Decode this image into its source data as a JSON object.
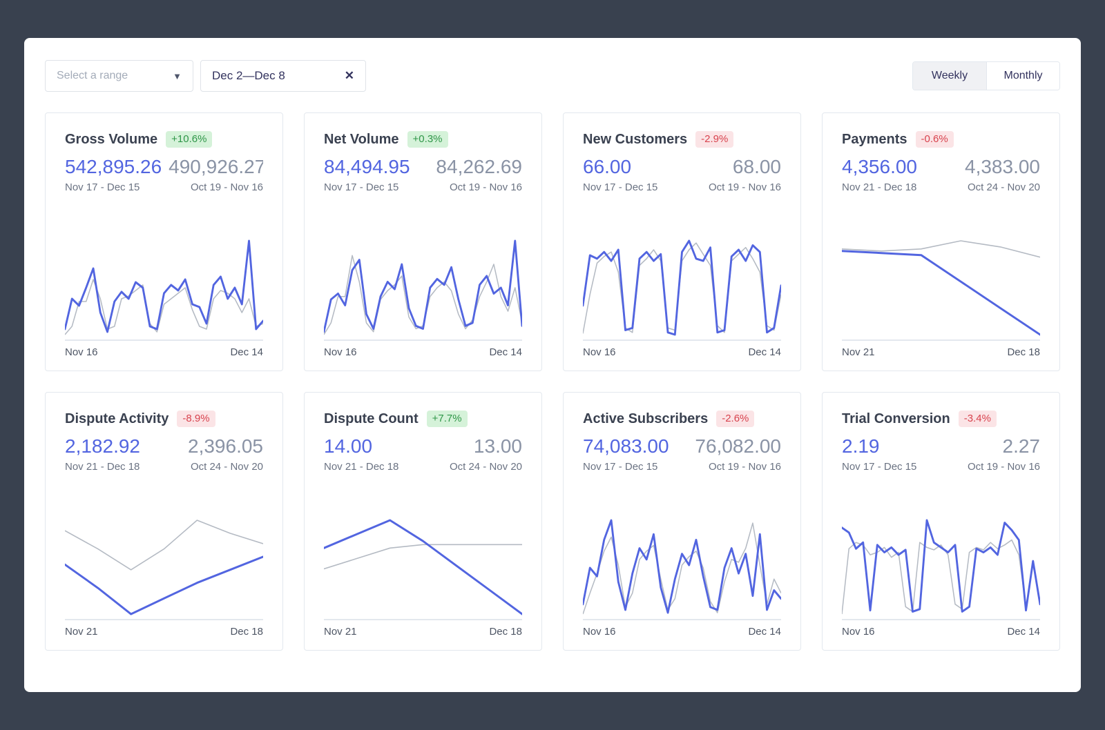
{
  "controls": {
    "range_select": {
      "label": "Select a range"
    },
    "range_input": {
      "value": "Dec 2—Dec 8"
    },
    "toggle": {
      "options": [
        "Weekly",
        "Monthly"
      ],
      "selected": "Weekly"
    }
  },
  "colors": {
    "accent": "#5265e0",
    "previous_line": "#b4bac3",
    "baseline": "#e3e8ee",
    "positive_text": "#2f9648",
    "negative_text": "#d8434e"
  },
  "cards": [
    {
      "title": "Gross Volume",
      "change": "+10.6%",
      "current_value": "542,895.26",
      "previous_value": "490,926.27",
      "current_period": "Nov 17 - Dec 15",
      "previous_period": "Oct 19 - Nov 16",
      "chart": {
        "type": "line",
        "x_start": "Nov 16",
        "x_end": "Dec 14",
        "current": [
          8,
          30,
          25,
          38,
          52,
          20,
          6,
          28,
          35,
          30,
          42,
          38,
          10,
          8,
          34,
          40,
          36,
          44,
          26,
          24,
          12,
          40,
          46,
          30,
          38,
          26,
          72,
          8,
          14
        ],
        "previous": [
          4,
          10,
          28,
          28,
          44,
          30,
          8,
          10,
          30,
          32,
          36,
          40,
          12,
          6,
          26,
          30,
          34,
          38,
          22,
          10,
          8,
          30,
          36,
          34,
          30,
          20,
          30,
          10,
          12
        ]
      }
    },
    {
      "title": "Net Volume",
      "change": "+0.3%",
      "current_value": "84,494.95",
      "previous_value": "84,262.69",
      "current_period": "Nov 17 - Dec 15",
      "previous_period": "Oct 19 - Nov 16",
      "chart": {
        "type": "line",
        "x_start": "Nov 16",
        "x_end": "Dec 14",
        "current": [
          6,
          28,
          32,
          24,
          48,
          55,
          18,
          8,
          30,
          40,
          35,
          52,
          22,
          10,
          8,
          36,
          42,
          38,
          50,
          28,
          10,
          12,
          38,
          44,
          32,
          36,
          24,
          68,
          10
        ],
        "previous": [
          4,
          12,
          30,
          30,
          58,
          40,
          12,
          6,
          28,
          34,
          38,
          44,
          16,
          8,
          10,
          30,
          36,
          40,
          34,
          18,
          8,
          14,
          30,
          40,
          52,
          30,
          20,
          36,
          12
        ]
      }
    },
    {
      "title": "New Customers",
      "change": "-2.9%",
      "current_value": "66.00",
      "previous_value": "68.00",
      "current_period": "Nov 17 - Dec 15",
      "previous_period": "Oct 19 - Nov 16",
      "chart": {
        "type": "line",
        "x_start": "Nov 16",
        "x_end": "Dec 14",
        "current": [
          30,
          75,
          72,
          78,
          70,
          80,
          8,
          10,
          72,
          78,
          70,
          76,
          6,
          4,
          78,
          88,
          72,
          70,
          82,
          6,
          8,
          74,
          80,
          70,
          84,
          78,
          6,
          10,
          48
        ],
        "previous": [
          5,
          40,
          68,
          74,
          78,
          60,
          10,
          6,
          66,
          72,
          80,
          70,
          10,
          8,
          70,
          80,
          86,
          76,
          66,
          12,
          6,
          70,
          76,
          82,
          72,
          60,
          12,
          8,
          40
        ]
      }
    },
    {
      "title": "Payments",
      "change": "-0.6%",
      "current_value": "4,356.00",
      "previous_value": "4,383.00",
      "current_period": "Nov 21 - Dec 18",
      "previous_period": "Oct 24 - Nov 20",
      "chart": {
        "type": "line",
        "x_start": "Nov 21",
        "x_end": "Dec 18",
        "current": [
          83,
          82,
          81,
          68,
          55,
          42
        ],
        "previous": [
          84,
          83,
          84,
          88,
          85,
          80
        ]
      }
    },
    {
      "title": "Dispute Activity",
      "change": "-8.9%",
      "current_value": "2,182.92",
      "previous_value": "2,396.05",
      "current_period": "Nov 21 - Dec 18",
      "previous_period": "Oct 24 - Nov 20",
      "chart": {
        "type": "line",
        "x_start": "Nov 21",
        "x_end": "Dec 18",
        "current": [
          58,
          40,
          20,
          32,
          44,
          54,
          64
        ],
        "previous": [
          84,
          70,
          54,
          70,
          92,
          82,
          74
        ]
      }
    },
    {
      "title": "Dispute Count",
      "change": "+7.7%",
      "current_value": "14.00",
      "previous_value": "13.00",
      "current_period": "Nov 21 - Dec 18",
      "previous_period": "Oct 24 - Nov 20",
      "chart": {
        "type": "line",
        "x_start": "Nov 21",
        "x_end": "Dec 18",
        "current": [
          60,
          68,
          76,
          64,
          50,
          36,
          22
        ],
        "previous": [
          48,
          54,
          60,
          62,
          62,
          62,
          62
        ]
      }
    },
    {
      "title": "Active Subscribers",
      "change": "-2.6%",
      "current_value": "74,083.00",
      "previous_value": "76,082.00",
      "current_period": "Nov 17 - Dec 15",
      "previous_period": "Oct 19 - Nov 16",
      "chart": {
        "type": "line",
        "x_start": "Nov 16",
        "x_end": "Dec 14",
        "current": [
          12,
          38,
          32,
          58,
          72,
          28,
          8,
          34,
          52,
          44,
          62,
          24,
          6,
          30,
          48,
          40,
          58,
          32,
          10,
          8,
          38,
          52,
          34,
          48,
          18,
          62,
          8,
          22,
          16
        ],
        "previous": [
          5,
          20,
          34,
          50,
          60,
          40,
          10,
          20,
          44,
          50,
          54,
          30,
          8,
          16,
          40,
          46,
          50,
          38,
          14,
          6,
          28,
          44,
          42,
          52,
          70,
          40,
          12,
          30,
          20
        ]
      }
    },
    {
      "title": "Trial Conversion",
      "change": "-3.4%",
      "current_value": "2.19",
      "previous_value": "2.27",
      "current_period": "Nov 17 - Dec 15",
      "previous_period": "Oct 19 - Nov 16",
      "chart": {
        "type": "line",
        "x_start": "Nov 16",
        "x_end": "Dec 14",
        "current": [
          72,
          68,
          55,
          60,
          5,
          58,
          52,
          56,
          50,
          54,
          4,
          6,
          78,
          60,
          56,
          52,
          58,
          4,
          8,
          55,
          52,
          56,
          50,
          76,
          70,
          62,
          5,
          45,
          10
        ],
        "previous": [
          2,
          55,
          60,
          58,
          50,
          52,
          56,
          48,
          52,
          8,
          4,
          60,
          56,
          54,
          58,
          50,
          10,
          6,
          52,
          56,
          54,
          60,
          55,
          58,
          62,
          50,
          8,
          42,
          12
        ]
      }
    }
  ]
}
